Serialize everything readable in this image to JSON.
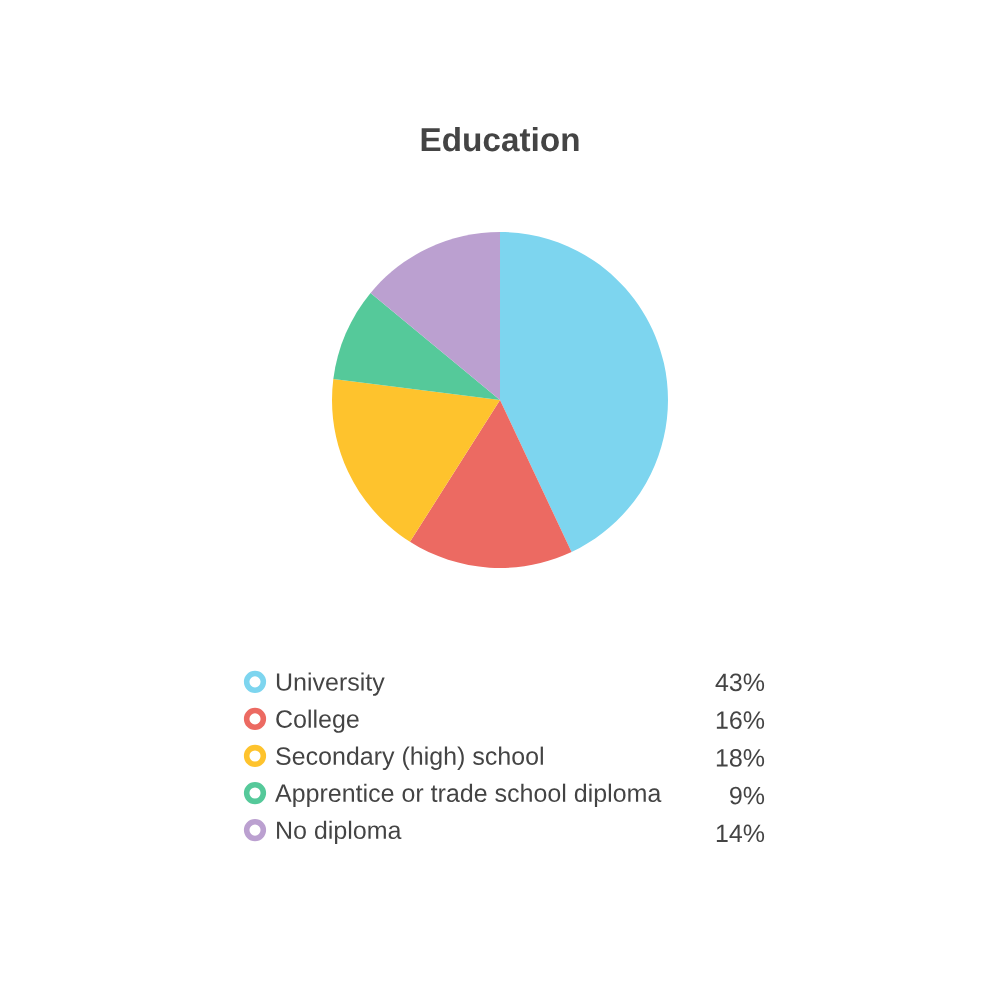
{
  "chart_data": {
    "type": "pie",
    "title": "Education",
    "categories": [
      "University",
      "College",
      "Secondary (high) school",
      "Apprentice or trade school diploma",
      "No diploma"
    ],
    "values": [
      43,
      16,
      18,
      9,
      14
    ],
    "value_labels": [
      "43%",
      "16%",
      "18%",
      "9%",
      "14%"
    ],
    "colors": [
      "#7dd5ef",
      "#ec6a62",
      "#fec32d",
      "#55c99a",
      "#bba0d0"
    ],
    "legend": "bottom"
  }
}
